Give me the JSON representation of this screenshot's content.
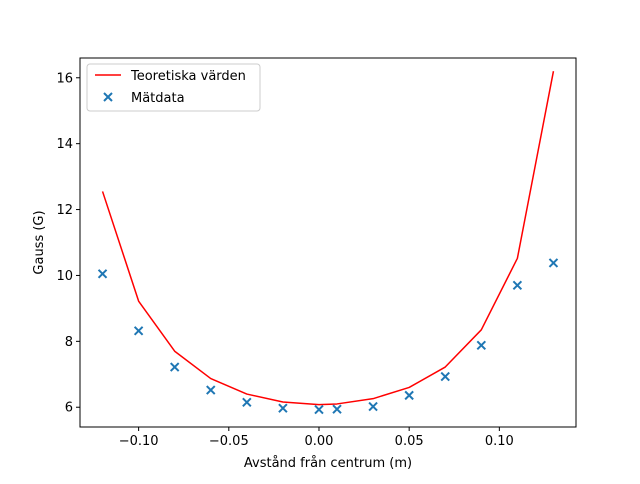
{
  "chart_data": {
    "type": "line",
    "title": "",
    "xlabel": "Avstånd från centrum (m)",
    "ylabel": "Gauss (G)",
    "xlim": [
      -0.1325,
      0.1425
    ],
    "ylim": [
      5.4,
      16.6
    ],
    "xticks": [
      {
        "value": -0.1,
        "label": "−0.10"
      },
      {
        "value": -0.05,
        "label": "−0.05"
      },
      {
        "value": 0.0,
        "label": "0.00"
      },
      {
        "value": 0.05,
        "label": "0.05"
      },
      {
        "value": 0.1,
        "label": "0.10"
      }
    ],
    "yticks": [
      {
        "value": 6,
        "label": "6"
      },
      {
        "value": 8,
        "label": "8"
      },
      {
        "value": 10,
        "label": "10"
      },
      {
        "value": 12,
        "label": "12"
      },
      {
        "value": 14,
        "label": "14"
      },
      {
        "value": 16,
        "label": "16"
      }
    ],
    "grid": false,
    "legend_position": "upper-left",
    "series": [
      {
        "name": "Teoretiska värden",
        "kind": "line",
        "color": "#ff0000",
        "x": [
          -0.12,
          -0.1,
          -0.08,
          -0.06,
          -0.04,
          -0.02,
          0.0,
          0.01,
          0.03,
          0.05,
          0.07,
          0.09,
          0.11,
          0.13
        ],
        "y": [
          12.55,
          9.22,
          7.7,
          6.87,
          6.4,
          6.16,
          6.08,
          6.1,
          6.26,
          6.6,
          7.22,
          8.35,
          10.52,
          16.2
        ]
      },
      {
        "name": "Mätdata",
        "kind": "scatter",
        "marker": "x",
        "color": "#1f77b4",
        "x": [
          -0.12,
          -0.1,
          -0.08,
          -0.06,
          -0.04,
          -0.02,
          0.0,
          0.01,
          0.03,
          0.05,
          0.07,
          0.09,
          0.11,
          0.13
        ],
        "y": [
          10.05,
          8.32,
          7.22,
          6.52,
          6.15,
          5.97,
          5.93,
          5.94,
          6.02,
          6.36,
          6.93,
          7.88,
          9.7,
          10.38
        ]
      }
    ]
  }
}
